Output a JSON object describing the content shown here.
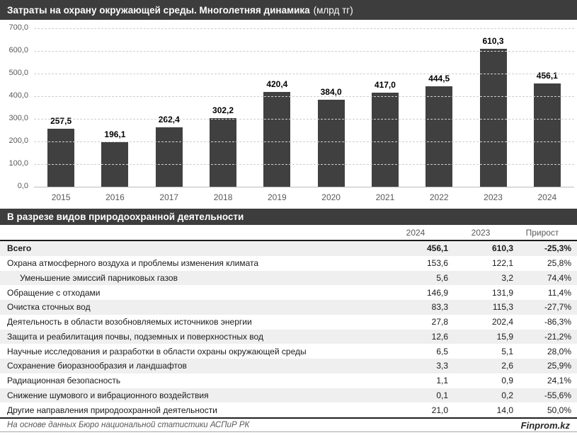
{
  "header": {
    "title_main": "Затраты на охрану окружающей среды. Многолетняя динамика",
    "title_unit": "(млрд тг)"
  },
  "chart_data": {
    "type": "bar",
    "title": "Затраты на охрану окружающей среды. Многолетняя динамика (млрд тг)",
    "categories": [
      "2015",
      "2016",
      "2017",
      "2018",
      "2019",
      "2020",
      "2021",
      "2022",
      "2023",
      "2024"
    ],
    "values": [
      257.5,
      196.1,
      262.4,
      302.2,
      420.4,
      384.0,
      417.0,
      444.5,
      610.3,
      456.1
    ],
    "value_labels": [
      "257,5",
      "196,1",
      "262,4",
      "302,2",
      "420,4",
      "384,0",
      "417,0",
      "444,5",
      "610,3",
      "456,1"
    ],
    "xlabel": "",
    "ylabel": "",
    "ylim": [
      0,
      700
    ],
    "ytick_labels": [
      "0,0",
      "100,0",
      "200,0",
      "300,0",
      "400,0",
      "500,0",
      "600,0",
      "700,0"
    ],
    "grid": "horizontal-dashed",
    "legend": "none"
  },
  "table_section": {
    "title": "В разрезе видов природоохранной деятельности",
    "columns": [
      "2024",
      "2023",
      "Прирост"
    ],
    "rows": [
      {
        "label": "Всего",
        "v2024": "456,1",
        "v2023": "610,3",
        "growth": "-25,3%",
        "bold": true,
        "indent": false
      },
      {
        "label": "Охрана атмосферного воздуха и проблемы изменения климата",
        "v2024": "153,6",
        "v2023": "122,1",
        "growth": "25,8%",
        "bold": false,
        "indent": false
      },
      {
        "label": "Уменьшение эмиссий парниковых газов",
        "v2024": "5,6",
        "v2023": "3,2",
        "growth": "74,4%",
        "bold": false,
        "indent": true
      },
      {
        "label": "Обращение с отходами",
        "v2024": "146,9",
        "v2023": "131,9",
        "growth": "11,4%",
        "bold": false,
        "indent": false
      },
      {
        "label": "Очистка сточных вод",
        "v2024": "83,3",
        "v2023": "115,3",
        "growth": "-27,7%",
        "bold": false,
        "indent": false
      },
      {
        "label": "Деятельность в области возобновляемых источников энергии",
        "v2024": "27,8",
        "v2023": "202,4",
        "growth": "-86,3%",
        "bold": false,
        "indent": false
      },
      {
        "label": "Защита и реабилитация почвы, подземных и поверхностных вод",
        "v2024": "12,6",
        "v2023": "15,9",
        "growth": "-21,2%",
        "bold": false,
        "indent": false
      },
      {
        "label": "Научные исследования и разработки в области охраны окружающей среды",
        "v2024": "6,5",
        "v2023": "5,1",
        "growth": "28,0%",
        "bold": false,
        "indent": false
      },
      {
        "label": "Сохранение биоразнообразия и ландшафтов",
        "v2024": "3,3",
        "v2023": "2,6",
        "growth": "25,9%",
        "bold": false,
        "indent": false
      },
      {
        "label": "Радиационная безопасность",
        "v2024": "1,1",
        "v2023": "0,9",
        "growth": "24,1%",
        "bold": false,
        "indent": false
      },
      {
        "label": "Снижение шумового и вибрационного воздействия",
        "v2024": "0,1",
        "v2023": "0,2",
        "growth": "-55,6%",
        "bold": false,
        "indent": false
      },
      {
        "label": "Другие направления природоохранной деятельности",
        "v2024": "21,0",
        "v2023": "14,0",
        "growth": "50,0%",
        "bold": false,
        "indent": false
      }
    ]
  },
  "footer": {
    "source": "На основе данных Бюро национальной статистики АСПиР РК",
    "brand": "Finprom.kz"
  },
  "colors": {
    "band_bg": "#3d3d3d",
    "bar": "#404040",
    "stripe": "#efefef",
    "grid": "#cfcfcf",
    "axis_text": "#595959"
  }
}
